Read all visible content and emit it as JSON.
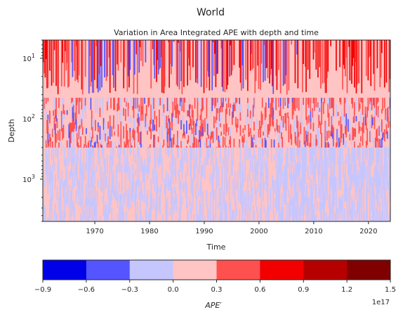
{
  "figure": {
    "suptitle": "World"
  },
  "chart_data": {
    "type": "heatmap",
    "title": "Variation in Area Integrated APE with depth and time",
    "xlabel": "Time",
    "ylabel": "Depth",
    "x_ticks": [
      "1970",
      "1980",
      "1990",
      "2000",
      "2010",
      "2020"
    ],
    "x_range": [
      1960.5,
      2024.0
    ],
    "y_scale": "log",
    "y_inverted": true,
    "y_range": [
      5,
      5000
    ],
    "y_ticks": [
      {
        "base": "10",
        "exp": "1",
        "value": 10
      },
      {
        "base": "10",
        "exp": "2",
        "value": 100
      },
      {
        "base": "10",
        "exp": "3",
        "value": 1000
      }
    ],
    "grid": false,
    "colorbar": {
      "label": "APE′",
      "levels": [
        -0.9,
        -0.6,
        -0.3,
        0.0,
        0.3,
        0.6,
        0.9,
        1.2,
        1.5
      ],
      "tick_labels": [
        "−0.9",
        "−0.6",
        "−0.3",
        "0.0",
        "0.3",
        "0.6",
        "0.9",
        "1.2",
        "1.5"
      ],
      "colors": [
        "#0000e8",
        "#5555ff",
        "#c6c6ff",
        "#ffc4c4",
        "#ff5050",
        "#f20000",
        "#b60000",
        "#800000"
      ],
      "offset_label": "1e17"
    },
    "bands": [
      {
        "depth_top": 5,
        "depth_bottom": 45,
        "dominant": "0.0 to 0.3",
        "secondary": [
          "0.3 to 0.6",
          "0.6 to 0.9",
          "-0.6 to -0.3"
        ]
      },
      {
        "depth_top": 45,
        "depth_bottom": 300,
        "dominant": "0.0 to 0.3",
        "secondary": [
          "0.3 to 0.6",
          "-0.3 to 0.0",
          "-0.6 to -0.3"
        ]
      },
      {
        "depth_top": 300,
        "depth_bottom": 5000,
        "dominant": "0.0 to 0.3",
        "secondary": [
          "-0.3 to 0.0"
        ]
      }
    ]
  }
}
